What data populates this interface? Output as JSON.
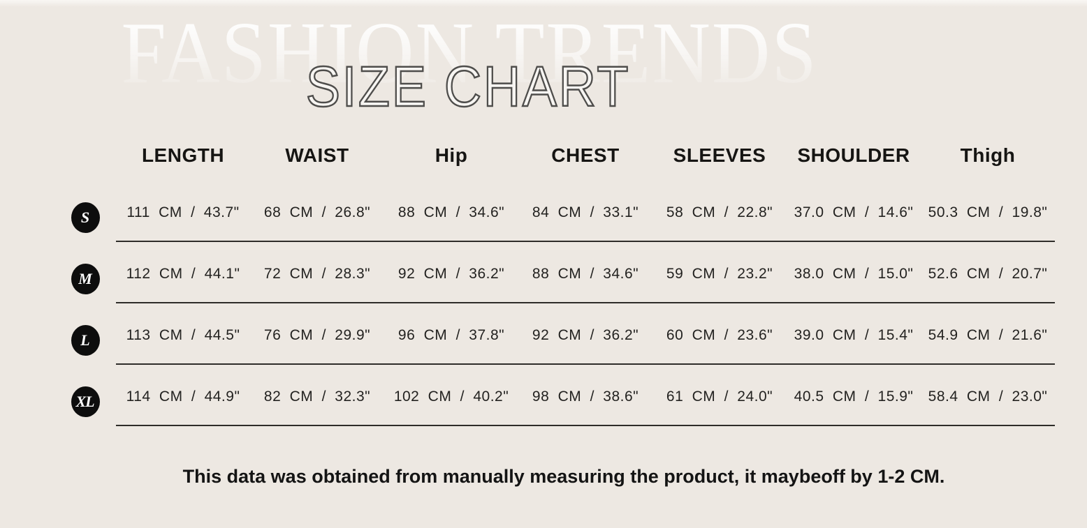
{
  "header": {
    "watermark": "FASHION TRENDS",
    "title": "SIZE CHART"
  },
  "chart_data": {
    "type": "table",
    "title": "SIZE CHART",
    "columns": [
      "LENGTH",
      "WAIST",
      "Hip",
      "CHEST",
      "SLEEVES",
      "SHOULDER",
      "Thigh"
    ],
    "row_labels": [
      "S",
      "M",
      "L",
      "XL"
    ],
    "rows": [
      {
        "size": "S",
        "cells": [
          "111 CM / 43.7\"",
          "68 CM / 26.8\"",
          "88 CM / 34.6\"",
          "84 CM / 33.1\"",
          "58 CM / 22.8\"",
          "37.0 CM / 14.6\"",
          "50.3 CM / 19.8\""
        ]
      },
      {
        "size": "M",
        "cells": [
          "112 CM / 44.1\"",
          "72 CM / 28.3\"",
          "92 CM / 36.2\"",
          "88 CM / 34.6\"",
          "59 CM / 23.2\"",
          "38.0 CM / 15.0\"",
          "52.6 CM / 20.7\""
        ]
      },
      {
        "size": "L",
        "cells": [
          "113 CM / 44.5\"",
          "76 CM / 29.9\"",
          "96 CM / 37.8\"",
          "92 CM / 36.2\"",
          "60 CM / 23.6\"",
          "39.0 CM / 15.4\"",
          "54.9 CM / 21.6\""
        ]
      },
      {
        "size": "XL",
        "cells": [
          "114 CM / 44.9\"",
          "82 CM / 32.3\"",
          "102 CM / 40.2\"",
          "98 CM / 38.6\"",
          "61 CM / 24.0\"",
          "40.5 CM / 15.9\"",
          "58.4 CM / 23.0\""
        ]
      }
    ]
  },
  "footnote": "This data was obtained from manually measuring the product, it maybeoff by 1-2 CM.",
  "colors": {
    "background": "#EDE8E2",
    "text": "#1E1D1B",
    "badge_background": "#0D0D0D",
    "badge_text": "#FFFFFF",
    "divider": "#2E2C29",
    "title_outline": "#4E4D4B",
    "watermark": "#FFFFFF"
  }
}
